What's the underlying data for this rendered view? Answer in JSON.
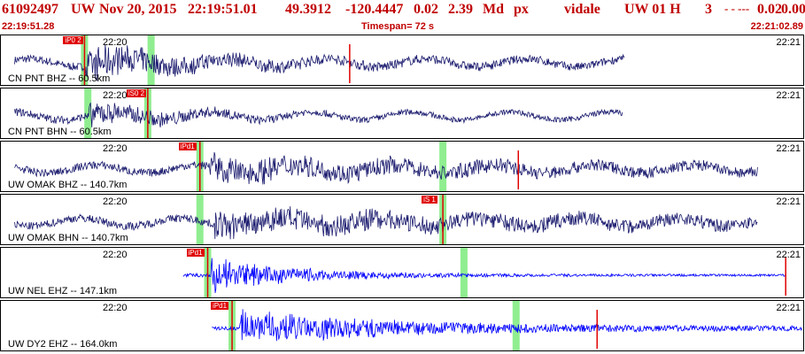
{
  "header": {
    "event_id": "61092497",
    "network": "UW",
    "date": "Nov 20, 2015",
    "time": "22:19:51.01",
    "lat": "49.3912",
    "lon": "-120.4447",
    "val1": "0.02",
    "magnitude": "2.39",
    "mag_type": "Md",
    "event_type": "px",
    "analyst": "vidale",
    "source": "UW 01 H",
    "quality_num": "3",
    "flags": "- - ---",
    "val2": "0.02",
    "val3": "0.00"
  },
  "subheader": {
    "start_time": "22:19:51.28",
    "timespan": "Timespan= 72 s",
    "end_time": "22:21:02.89"
  },
  "colors": {
    "header": "#c00000",
    "trace_dark": "#1a1a6e",
    "trace_blue": "#0000ff",
    "pick": "#e00000",
    "window": "#90ee90"
  },
  "chart_data": {
    "type": "line",
    "x_unit": "s",
    "x_range": [
      0,
      72
    ],
    "panels": [
      {
        "label": "CN PNT BHZ -- 60.5km",
        "tick_left": "22:20",
        "tick_right": "22:21",
        "color": "#1a1a6e",
        "pick": {
          "label": "iP0 2",
          "time": 7.3
        },
        "green": [
          7.3,
          13.3
        ],
        "trace": {
          "onset": 7.3,
          "end": 56.0,
          "peak_amp": 0.75,
          "decay": 10,
          "coda": 0.18
        },
        "red_marks": [
          31.2
        ]
      },
      {
        "label": "CN PNT BHN -- 60.5km",
        "tick_left": "22:20",
        "tick_right": "22:21",
        "color": "#1a1a6e",
        "pick": {
          "label": "iS0 2",
          "time": 13.0
        },
        "green": [
          7.6,
          13.0
        ],
        "trace": {
          "onset": 7.6,
          "end": 55.8,
          "peak_amp": 0.6,
          "decay": 8,
          "coda": 0.12
        },
        "red_marks": []
      },
      {
        "label": "UW OMAK BHZ -- 140.7km",
        "tick_left": "22:20",
        "tick_right": "22:21",
        "color": "#1a1a6e",
        "pick": {
          "label": "iPd1",
          "time": 17.7
        },
        "green": [
          17.7,
          39.6
        ],
        "trace": {
          "onset": 18.5,
          "end": 68.0,
          "peak_amp": 0.55,
          "decay": 20,
          "coda": 0.2
        },
        "red_marks": [
          46.4
        ]
      },
      {
        "label": "UW OMAK BHN -- 140.7km",
        "tick_left": "22:20",
        "tick_right": "22:21",
        "color": "#1a1a6e",
        "pick": {
          "label": "iS 1",
          "time": 39.6
        },
        "green": [
          17.7,
          39.6
        ],
        "trace": {
          "onset": 19.0,
          "end": 68.0,
          "peak_amp": 0.55,
          "decay": 28,
          "coda": 0.2
        },
        "red_marks": []
      },
      {
        "label": "UW NEL EHZ -- 147.1km",
        "tick_left": "22:20",
        "tick_right": "22:21",
        "color": "#0000ff",
        "pick": {
          "label": "iPd1",
          "time": 18.4
        },
        "green": [
          18.4,
          41.5
        ],
        "trace": {
          "onset": 18.7,
          "end": 70.5,
          "peak_amp": 0.85,
          "decay": 8,
          "coda": 0.05
        },
        "red_marks": [
          70.5
        ]
      },
      {
        "label": "UW DY2 EHZ -- 164.0km",
        "tick_left": "22:20",
        "tick_right": "22:21",
        "color": "#0000ff",
        "pick": {
          "label": "iPd1",
          "time": 20.6
        },
        "green": [
          20.6,
          46.2
        ],
        "trace": {
          "onset": 21.3,
          "end": 72.0,
          "peak_amp": 0.85,
          "decay": 14,
          "coda": 0.1
        },
        "red_marks": [
          53.5
        ]
      }
    ]
  }
}
